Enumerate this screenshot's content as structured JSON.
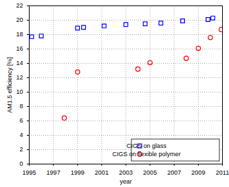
{
  "chart_data": {
    "type": "scatter",
    "x_label": "year",
    "y_label": "AM1.5 efficiency [%]",
    "xlim": [
      1995,
      2011
    ],
    "xticks": [
      1995,
      1997,
      1999,
      2001,
      2003,
      2005,
      2007,
      2009,
      2011
    ],
    "ylim": [
      0,
      22
    ],
    "yticks": [
      0,
      2,
      4,
      6,
      8,
      10,
      12,
      14,
      16,
      18,
      20,
      22
    ],
    "grid": true,
    "legend": "lower right",
    "series": [
      {
        "name": "CIGS on glass",
        "color": "#0000ff",
        "marker": "square",
        "x": [
          1995.2,
          1996.0,
          1999.0,
          1999.5,
          2001.2,
          2003.0,
          2004.6,
          2005.9,
          2007.7,
          2009.8,
          2010.2
        ],
        "values": [
          17.7,
          17.8,
          18.9,
          19.0,
          19.2,
          19.4,
          19.5,
          19.6,
          19.9,
          20.1,
          20.3
        ]
      },
      {
        "name": "CIGS on flexible polymer",
        "color": "#ff0000",
        "marker": "circle",
        "x": [
          1997.9,
          1999.0,
          2004.0,
          2005.0,
          2008.0,
          2009.0,
          2010.0,
          2010.9
        ],
        "values": [
          6.4,
          12.8,
          13.2,
          14.1,
          14.7,
          16.1,
          17.6,
          18.7
        ]
      }
    ]
  }
}
